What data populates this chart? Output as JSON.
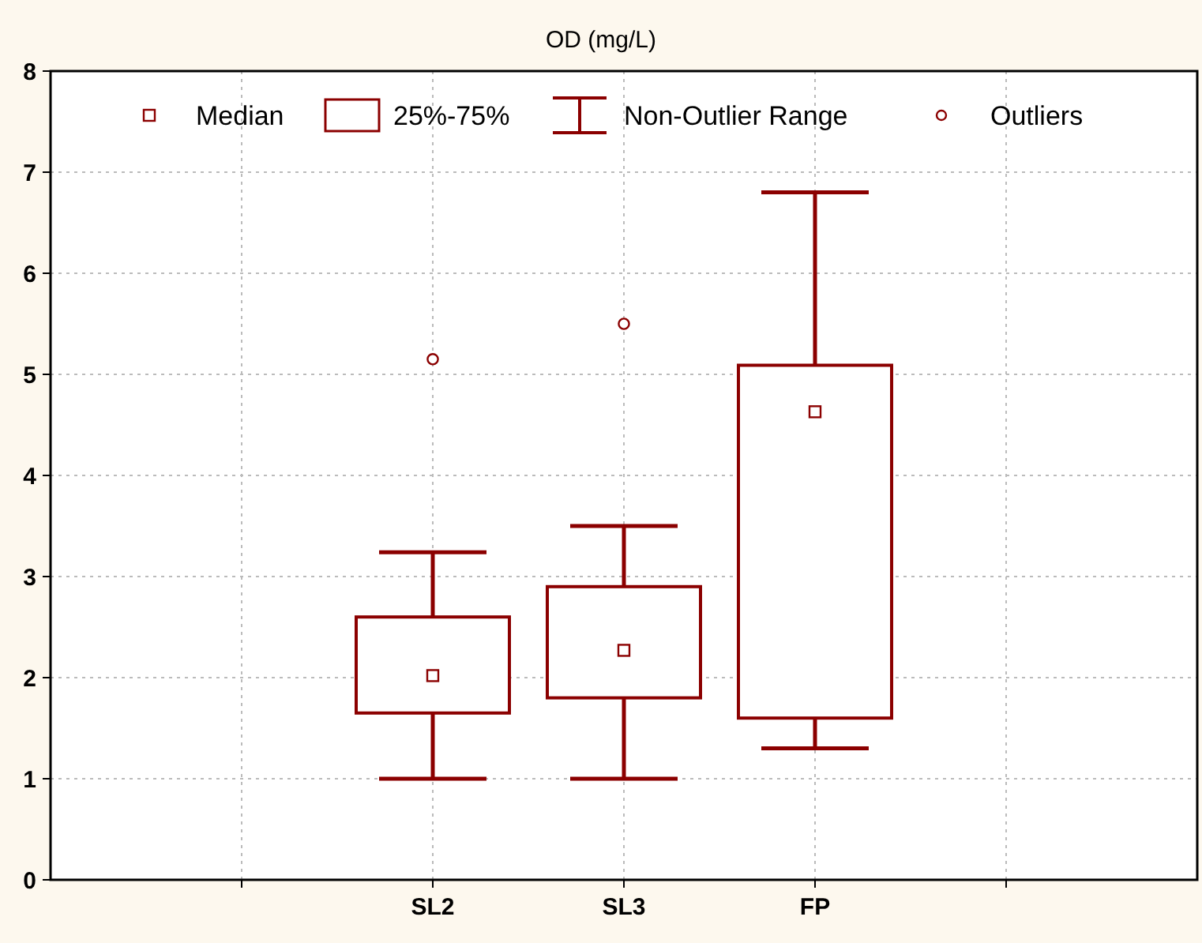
{
  "chart_data": {
    "type": "box",
    "title": "OD (mg/L)",
    "categories": [
      null,
      "SL2",
      "SL3",
      "FP",
      null
    ],
    "boxes": [
      null,
      {
        "low": 1.0,
        "q1": 1.65,
        "median": 2.02,
        "q3": 2.6,
        "high": 3.24,
        "outliers": [
          5.15
        ]
      },
      {
        "low": 1.0,
        "q1": 1.8,
        "median": 2.27,
        "q3": 2.9,
        "high": 3.5,
        "outliers": [
          5.5
        ]
      },
      {
        "low": 1.3,
        "q1": 1.6,
        "median": 4.63,
        "q3": 5.09,
        "high": 6.8
      },
      null
    ],
    "color": "#8b0000",
    "ylim": [
      0,
      8
    ],
    "yticks": [
      0,
      1,
      2,
      3,
      4,
      5,
      6,
      7,
      8
    ],
    "grid": true,
    "annotations": [
      "Median",
      "25%-75%",
      "Non-Outlier Range",
      "Outliers"
    ]
  }
}
